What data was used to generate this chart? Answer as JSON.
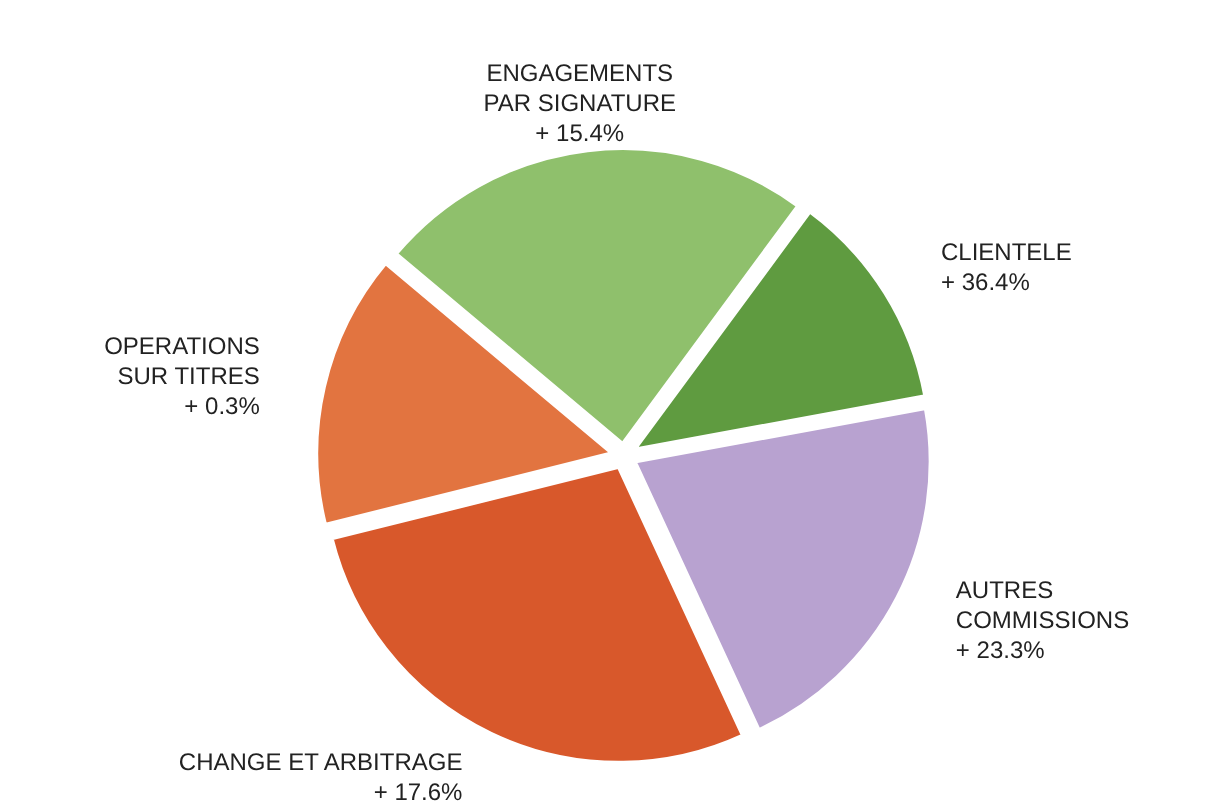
{
  "chart_data": {
    "type": "pie",
    "categories": [
      "ENGAGEMENTS\nPAR SIGNATURE\n+ 15.4%",
      "CLIENTELE\n+ 36.4%",
      "AUTRES\nCOMMISSIONS\n+ 23.3%",
      "CHANGE ET ARBITRAGE\n+ 17.6%",
      "OPERATIONS\nSUR TITRES\n+ 0.3%"
    ],
    "values": [
      24,
      12,
      21,
      28,
      15
    ],
    "colors": [
      "#8fc06c",
      "#5f9b40",
      "#b8a2d0",
      "#d8582b",
      "#e27440"
    ]
  }
}
